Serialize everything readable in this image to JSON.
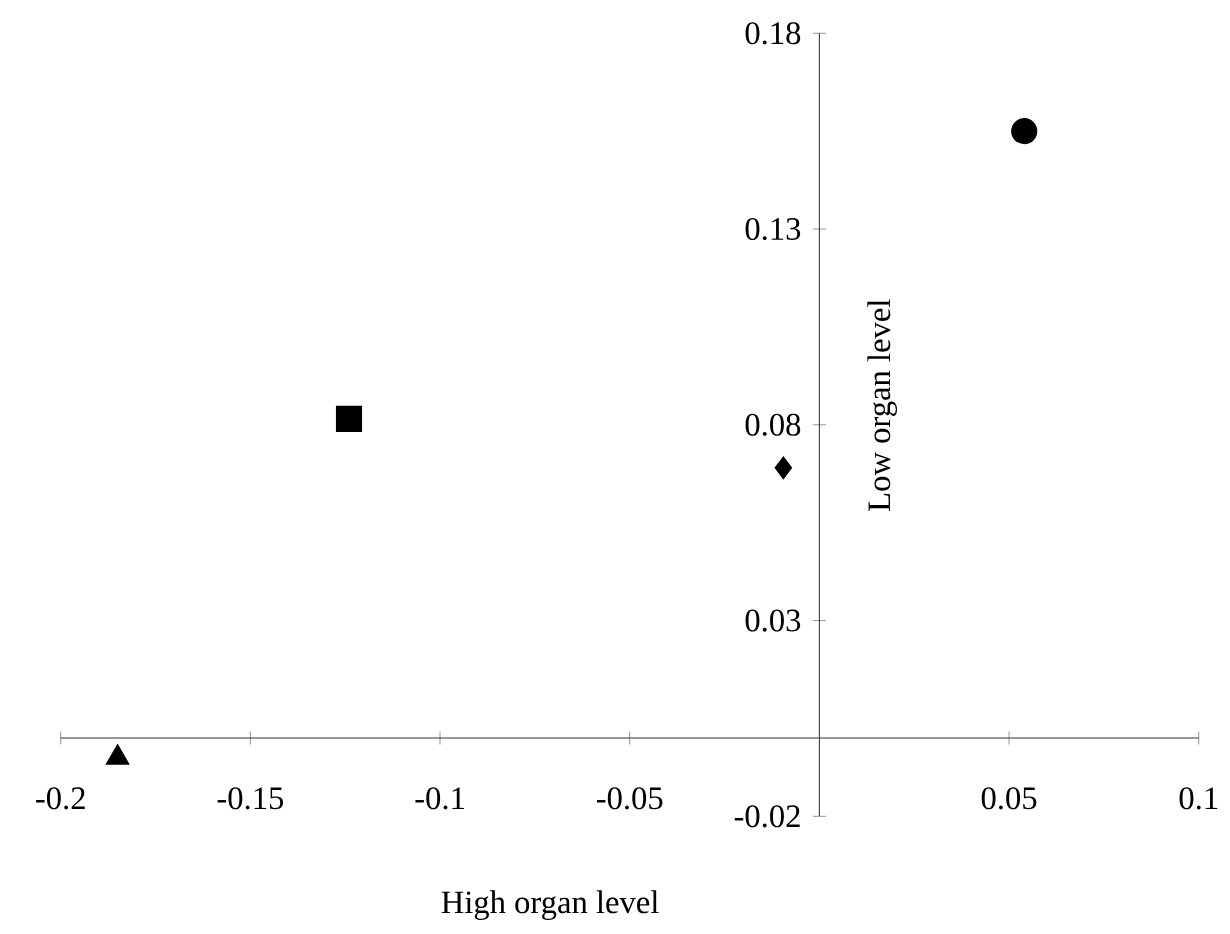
{
  "chart_data": {
    "type": "scatter",
    "xlabel": "High organ level",
    "ylabel": "Low organ level",
    "xlim": [
      -0.2,
      0.1
    ],
    "ylim": [
      -0.02,
      0.18
    ],
    "xticks": [
      -0.2,
      -0.15,
      -0.1,
      -0.05,
      0.05,
      0.1
    ],
    "yticks": [
      -0.02,
      0.03,
      0.08,
      0.13,
      0.18
    ],
    "series": [
      {
        "x": [
          0.054
        ],
        "values": [
          0.155
        ],
        "color": "#000000",
        "marker": "circle"
      },
      {
        "x": [
          -0.124
        ],
        "values": [
          0.0815
        ],
        "color": "#000000",
        "marker": "square"
      },
      {
        "x": [
          -0.0095
        ],
        "values": [
          0.069
        ],
        "color": "#000000",
        "marker": "diamond"
      },
      {
        "x": [
          -0.185
        ],
        "values": [
          -0.005
        ],
        "color": "#000000",
        "marker": "triangle"
      }
    ]
  }
}
